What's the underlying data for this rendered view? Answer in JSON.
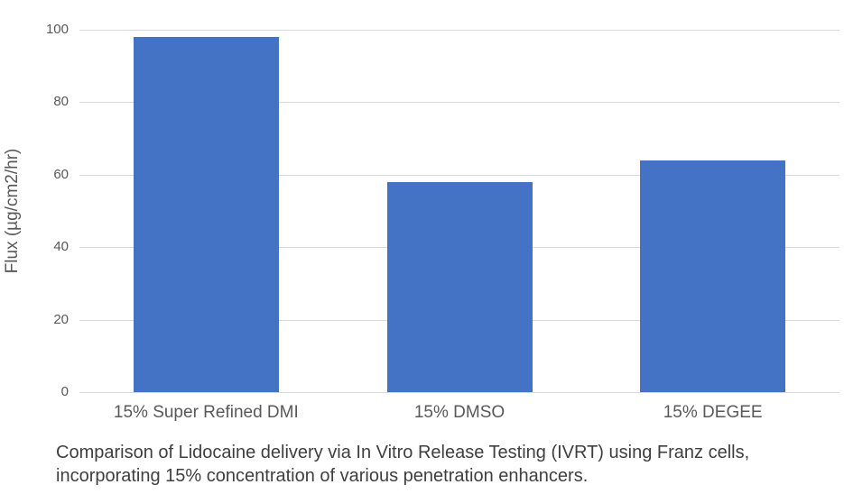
{
  "chart_data": {
    "type": "bar",
    "categories": [
      "15% Super Refined DMI",
      "15% DMSO",
      "15% DEGEE"
    ],
    "values": [
      98,
      58,
      64
    ],
    "title": "",
    "xlabel": "",
    "ylabel": "Flux (µg/cm2/hr)",
    "ylim": [
      0,
      100
    ],
    "yticks": [
      0,
      20,
      40,
      60,
      80,
      100
    ],
    "grid": true,
    "legend": "none",
    "bar_color": "#4472c4",
    "gridline_color": "#d9d9d9",
    "tick_label_color": "#595959",
    "caption_color": "#3f3f3f"
  },
  "caption": {
    "lines": [
      "Comparison of Lidocaine delivery via In Vitro Release Testing (IVRT) using Franz cells,",
      "incorporating 15% concentration of various penetration enhancers."
    ]
  }
}
